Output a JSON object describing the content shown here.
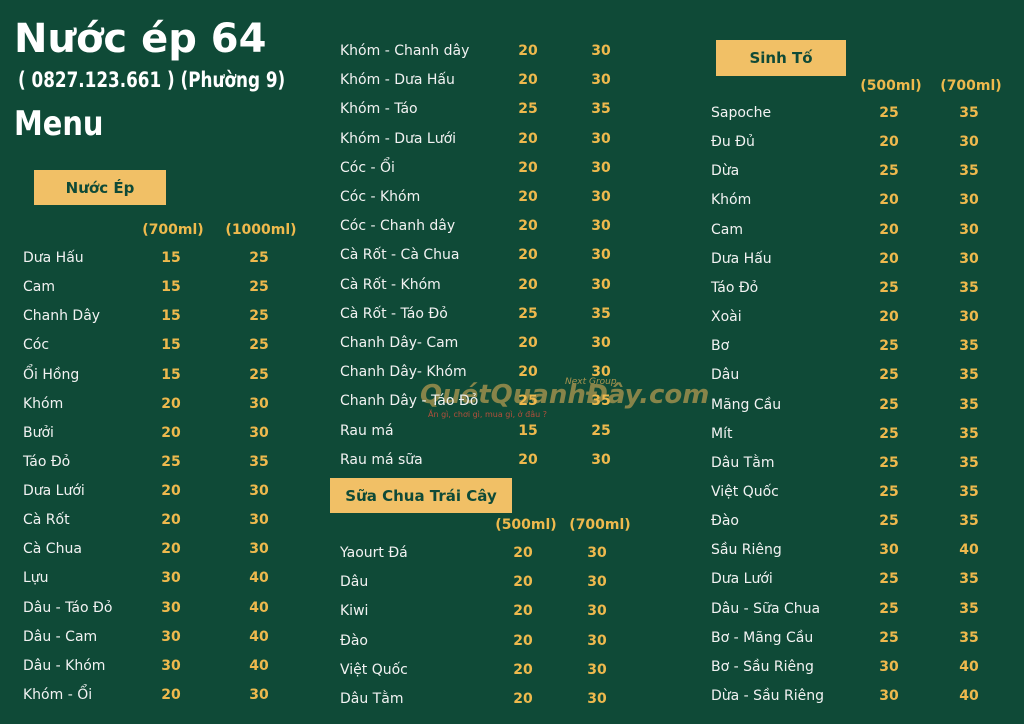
{
  "header": {
    "title": "Nước ép 64",
    "phone": "( 0827.123.661 ) (Phường 9)",
    "subtitle": "Menu"
  },
  "nuoc_ep": {
    "title": "Nước Ép",
    "sizes": [
      "(700ml)",
      "(1000ml)"
    ],
    "rows": [
      [
        "Dưa Hấu",
        15,
        25
      ],
      [
        "Cam",
        15,
        25
      ],
      [
        "Chanh Dây",
        15,
        25
      ],
      [
        "Cóc",
        15,
        25
      ],
      [
        "Ổi Hồng",
        15,
        25
      ],
      [
        "Khóm",
        20,
        30
      ],
      [
        "Bưởi",
        20,
        30
      ],
      [
        "Táo Đỏ",
        25,
        35
      ],
      [
        "Dưa Lưới",
        20,
        30
      ],
      [
        "Cà Rốt",
        20,
        30
      ],
      [
        "Cà Chua",
        20,
        30
      ],
      [
        "Lựu",
        30,
        40
      ],
      [
        "Dâu - Táo Đỏ",
        30,
        40
      ],
      [
        "Dâu - Cam",
        30,
        40
      ],
      [
        "Dâu - Khóm",
        30,
        40
      ],
      [
        "Khóm - Ổi",
        20,
        30
      ],
      [
        "Khóm - Chanh dây",
        20,
        30
      ],
      [
        "Khóm - Dưa Hấu",
        20,
        30
      ],
      [
        "Khóm - Táo",
        25,
        35
      ],
      [
        "Khóm - Dưa Lưới",
        20,
        30
      ],
      [
        "Cóc - Ổi",
        20,
        30
      ],
      [
        "Cóc - Khóm",
        20,
        30
      ],
      [
        "Cóc - Chanh dây",
        20,
        30
      ],
      [
        "Cà Rốt - Cà Chua",
        20,
        30
      ],
      [
        "Cà Rốt - Khóm",
        20,
        30
      ],
      [
        "Cà Rốt - Táo Đỏ",
        25,
        35
      ],
      [
        "Chanh Dây- Cam",
        20,
        30
      ],
      [
        "Chanh Dây- Khóm",
        20,
        30
      ],
      [
        "Chanh Dây - Táo Đỏ",
        25,
        35
      ],
      [
        "Rau má",
        15,
        25
      ],
      [
        "Rau má sữa",
        20,
        30
      ]
    ]
  },
  "sua_chua": {
    "title": "Sữa Chua Trái Cây",
    "sizes": [
      "(500ml)",
      "(700ml)"
    ],
    "rows": [
      [
        "Yaourt Đá",
        20,
        30
      ],
      [
        "Dâu",
        20,
        30
      ],
      [
        "Kiwi",
        20,
        30
      ],
      [
        "Đào",
        20,
        30
      ],
      [
        "Việt Quốc",
        20,
        30
      ],
      [
        "Dâu Tằm",
        20,
        30
      ]
    ]
  },
  "sinh_to": {
    "title": "Sinh Tố",
    "sizes": [
      "(500ml)",
      "(700ml)"
    ],
    "rows": [
      [
        "Sapoche",
        25,
        35
      ],
      [
        "Đu Đủ",
        20,
        30
      ],
      [
        "Dừa",
        25,
        35
      ],
      [
        "Khóm",
        20,
        30
      ],
      [
        "Cam",
        20,
        30
      ],
      [
        "Dưa Hấu",
        20,
        30
      ],
      [
        "Táo Đỏ",
        25,
        35
      ],
      [
        "Xoài",
        20,
        30
      ],
      [
        "Bơ",
        25,
        35
      ],
      [
        "Dâu",
        25,
        35
      ],
      [
        "Mãng Cầu",
        25,
        35
      ],
      [
        "Mít",
        25,
        35
      ],
      [
        "Dâu Tằm",
        25,
        35
      ],
      [
        "Việt Quốc",
        25,
        35
      ],
      [
        "Đào",
        25,
        35
      ],
      [
        "Sầu Riêng",
        30,
        40
      ],
      [
        "Dưa Lưới",
        25,
        35
      ],
      [
        "Dâu - Sữa Chua",
        25,
        35
      ],
      [
        "Bơ - Mãng Cầu",
        25,
        35
      ],
      [
        "Bơ - Sầu Riêng",
        30,
        40
      ],
      [
        "Dừa - Sầu Riêng",
        30,
        40
      ]
    ]
  },
  "watermark": {
    "site": "QuétQuanhĐây.com",
    "group": "Next Group",
    "tagline": "Ăn gì, chơi gì, mua gì, ở đâu ?"
  }
}
